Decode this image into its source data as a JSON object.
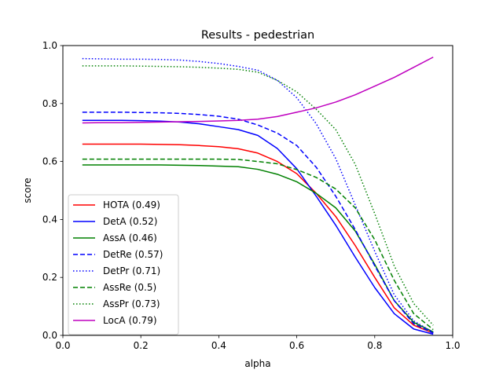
{
  "chart_data": {
    "type": "line",
    "title": "Results - pedestrian",
    "xlabel": "alpha",
    "ylabel": "score",
    "xlim": [
      0.0,
      1.0
    ],
    "ylim": [
      0.0,
      1.0
    ],
    "xticks": [
      "0.0",
      "0.2",
      "0.4",
      "0.6",
      "0.8",
      "1.0"
    ],
    "yticks": [
      "0.0",
      "0.2",
      "0.4",
      "0.6",
      "0.8",
      "1.0"
    ],
    "grid": false,
    "legend_position": "lower-left",
    "x": [
      0.05,
      0.1,
      0.15,
      0.2,
      0.25,
      0.3,
      0.35,
      0.4,
      0.45,
      0.5,
      0.55,
      0.6,
      0.65,
      0.7,
      0.75,
      0.8,
      0.85,
      0.9,
      0.95
    ],
    "series": [
      {
        "name": "HOTA (0.49)",
        "color": "#ff0000",
        "style": "solid",
        "values": [
          0.66,
          0.66,
          0.66,
          0.66,
          0.659,
          0.658,
          0.655,
          0.651,
          0.644,
          0.629,
          0.6,
          0.558,
          0.49,
          0.41,
          0.31,
          0.2,
          0.095,
          0.035,
          0.008
        ]
      },
      {
        "name": "DetA (0.52)",
        "color": "#0000ff",
        "style": "solid",
        "values": [
          0.742,
          0.742,
          0.742,
          0.741,
          0.739,
          0.736,
          0.73,
          0.72,
          0.71,
          0.69,
          0.645,
          0.575,
          0.48,
          0.38,
          0.27,
          0.165,
          0.075,
          0.022,
          0.004
        ]
      },
      {
        "name": "AssA (0.46)",
        "color": "#008000",
        "style": "solid",
        "values": [
          0.588,
          0.588,
          0.588,
          0.588,
          0.588,
          0.587,
          0.586,
          0.584,
          0.582,
          0.573,
          0.556,
          0.53,
          0.49,
          0.44,
          0.36,
          0.245,
          0.12,
          0.045,
          0.012
        ]
      },
      {
        "name": "DetRe (0.57)",
        "color": "#0000ff",
        "style": "dashed",
        "values": [
          0.77,
          0.77,
          0.77,
          0.769,
          0.768,
          0.766,
          0.762,
          0.756,
          0.746,
          0.726,
          0.698,
          0.655,
          0.58,
          0.48,
          0.365,
          0.24,
          0.12,
          0.04,
          0.008
        ]
      },
      {
        "name": "DetPr (0.71)",
        "color": "#0000ff",
        "style": "dotted",
        "values": [
          0.955,
          0.954,
          0.953,
          0.953,
          0.952,
          0.95,
          0.945,
          0.938,
          0.928,
          0.915,
          0.88,
          0.82,
          0.73,
          0.61,
          0.45,
          0.29,
          0.14,
          0.05,
          0.01
        ]
      },
      {
        "name": "AssRe (0.5)",
        "color": "#008000",
        "style": "dashed",
        "values": [
          0.608,
          0.608,
          0.608,
          0.608,
          0.608,
          0.608,
          0.608,
          0.608,
          0.607,
          0.6,
          0.592,
          0.572,
          0.545,
          0.505,
          0.44,
          0.33,
          0.19,
          0.075,
          0.02
        ]
      },
      {
        "name": "AssPr (0.73)",
        "color": "#008000",
        "style": "dotted",
        "values": [
          0.93,
          0.93,
          0.93,
          0.929,
          0.928,
          0.927,
          0.925,
          0.922,
          0.918,
          0.908,
          0.88,
          0.84,
          0.78,
          0.71,
          0.59,
          0.42,
          0.24,
          0.11,
          0.035
        ]
      },
      {
        "name": "LocA (0.79)",
        "color": "#bf00bf",
        "style": "solid",
        "values": [
          0.733,
          0.734,
          0.734,
          0.735,
          0.736,
          0.737,
          0.738,
          0.74,
          0.742,
          0.746,
          0.755,
          0.77,
          0.785,
          0.805,
          0.83,
          0.86,
          0.89,
          0.925,
          0.96
        ]
      }
    ]
  }
}
